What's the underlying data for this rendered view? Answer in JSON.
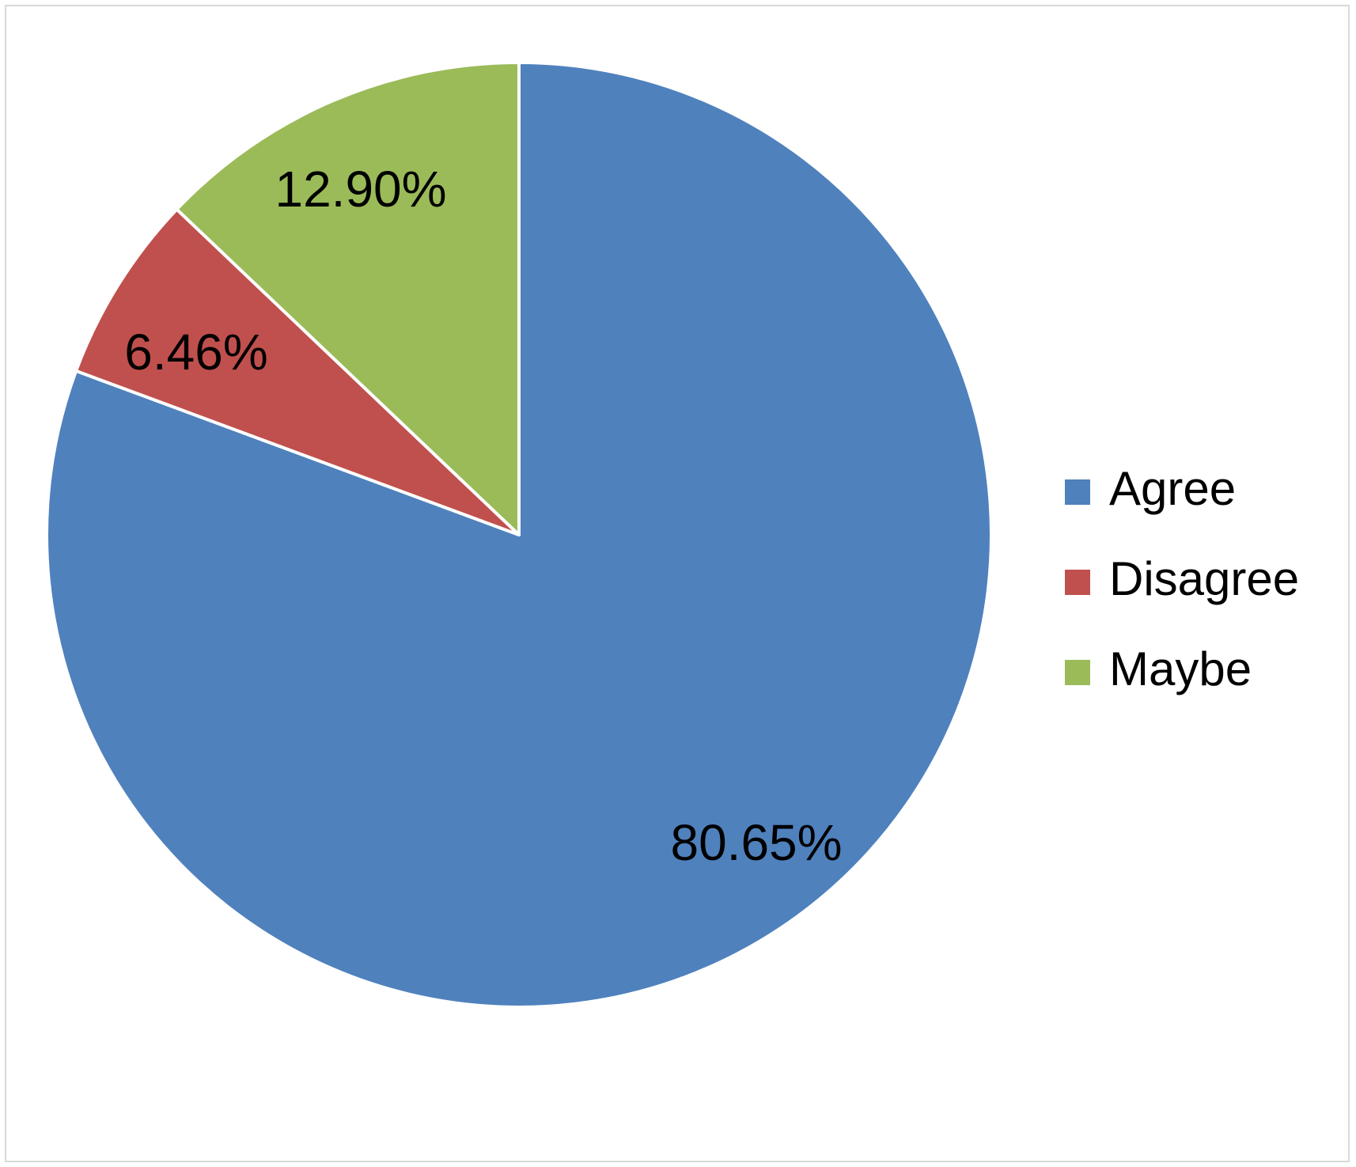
{
  "chart_data": {
    "type": "pie",
    "categories": [
      "Agree",
      "Disagree",
      "Maybe"
    ],
    "values": [
      80.65,
      6.46,
      12.9
    ],
    "data_labels": [
      "80.65%",
      "6.46%",
      "12.90%"
    ],
    "colors": [
      "#4f81bd",
      "#c0504d",
      "#9bbb59"
    ],
    "start_angle_deg": 0,
    "direction": "clockwise",
    "legend_position": "right",
    "title": ""
  }
}
